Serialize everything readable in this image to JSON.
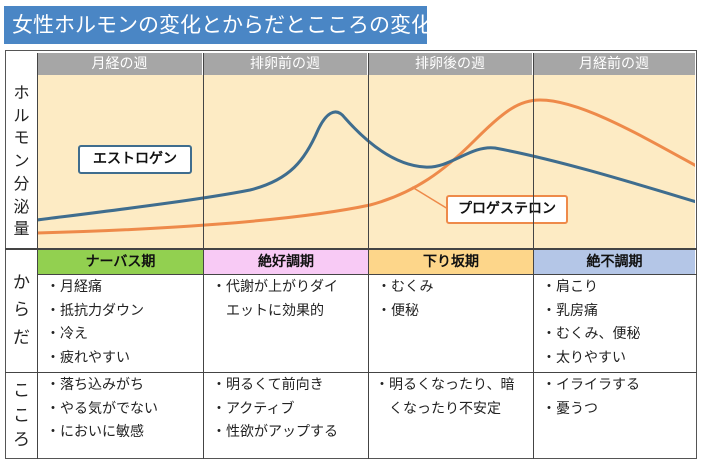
{
  "title": "女性ホルモンの変化とからだとこころの変化",
  "weeks": [
    "月経の週",
    "排卵前の週",
    "排卵後の週",
    "月経前の週"
  ],
  "side_labels": {
    "hormone": [
      "ホ",
      "ル",
      "モ",
      "ン",
      "分",
      "泌",
      "量"
    ],
    "body": [
      "か",
      "ら",
      "だ"
    ],
    "mind": [
      "こ",
      "こ",
      "ろ"
    ]
  },
  "curves": {
    "estrogen": {
      "label": "エストロゲン",
      "color": "#3f6d8e"
    },
    "progesterone": {
      "label": "プロゲステロン",
      "color": "#ee8a4a"
    }
  },
  "phases": [
    {
      "label": "ナーバス期",
      "color": "#92d050"
    },
    {
      "label": "絶好調期",
      "color": "#f8caf5"
    },
    {
      "label": "下り坂期",
      "color": "#fdd68a"
    },
    {
      "label": "絶不調期",
      "color": "#b4c6e7"
    }
  ],
  "body": [
    [
      "・月経痛",
      "・抵抗力ダウン",
      "・冷え",
      "・疲れやすい"
    ],
    [
      "・代謝が上がりダイ",
      "　エットに効果的"
    ],
    [
      "・むくみ",
      "・便秘"
    ],
    [
      "・肩こり",
      "・乳房痛",
      "・むくみ、便秘",
      "・太りやすい"
    ]
  ],
  "mind": [
    [
      "・落ち込みがち",
      "・やる気がでない",
      "・においに敏感"
    ],
    [
      "・明るくて前向き",
      "・アクティブ",
      "・性欲がアップする"
    ],
    [
      "・明るくなったり、暗",
      "　くなったり不安定"
    ],
    [
      "・イライラする",
      "・憂うつ"
    ]
  ]
}
